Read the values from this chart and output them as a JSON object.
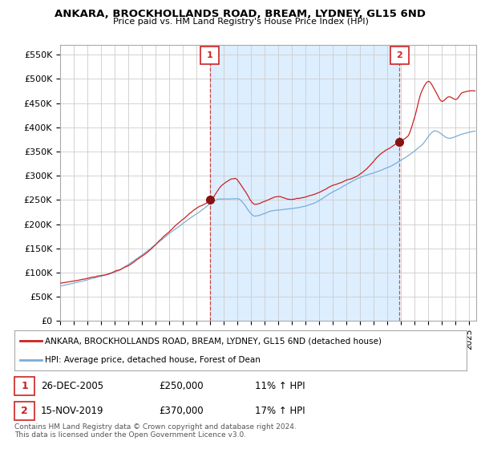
{
  "title": "ANKARA, BROCKHOLLANDS ROAD, BREAM, LYDNEY, GL15 6ND",
  "subtitle": "Price paid vs. HM Land Registry's House Price Index (HPI)",
  "ylabel_ticks": [
    "£0",
    "£50K",
    "£100K",
    "£150K",
    "£200K",
    "£250K",
    "£300K",
    "£350K",
    "£400K",
    "£450K",
    "£500K",
    "£550K"
  ],
  "ytick_values": [
    0,
    50000,
    100000,
    150000,
    200000,
    250000,
    300000,
    350000,
    400000,
    450000,
    500000,
    550000
  ],
  "ylim": [
    0,
    570000
  ],
  "xlim_start": 1995.0,
  "xlim_end": 2025.5,
  "sale1_x": 2005.98,
  "sale1_y": 250000,
  "sale2_x": 2019.88,
  "sale2_y": 370000,
  "legend_line1": "ANKARA, BROCKHOLLANDS ROAD, BREAM, LYDNEY, GL15 6ND (detached house)",
  "legend_line2": "HPI: Average price, detached house, Forest of Dean",
  "table_row1": [
    "1",
    "26-DEC-2005",
    "£250,000",
    "11% ↑ HPI"
  ],
  "table_row2": [
    "2",
    "15-NOV-2019",
    "£370,000",
    "17% ↑ HPI"
  ],
  "footnote": "Contains HM Land Registry data © Crown copyright and database right 2024.\nThis data is licensed under the Open Government Licence v3.0.",
  "line_color_red": "#cc2222",
  "line_color_blue": "#7aaed6",
  "shade_color": "#ddeeff",
  "vline_color": "#cc2222",
  "background_color": "#ffffff",
  "plot_bg_color": "#ffffff",
  "grid_color": "#cccccc",
  "marker_color": "#881111"
}
